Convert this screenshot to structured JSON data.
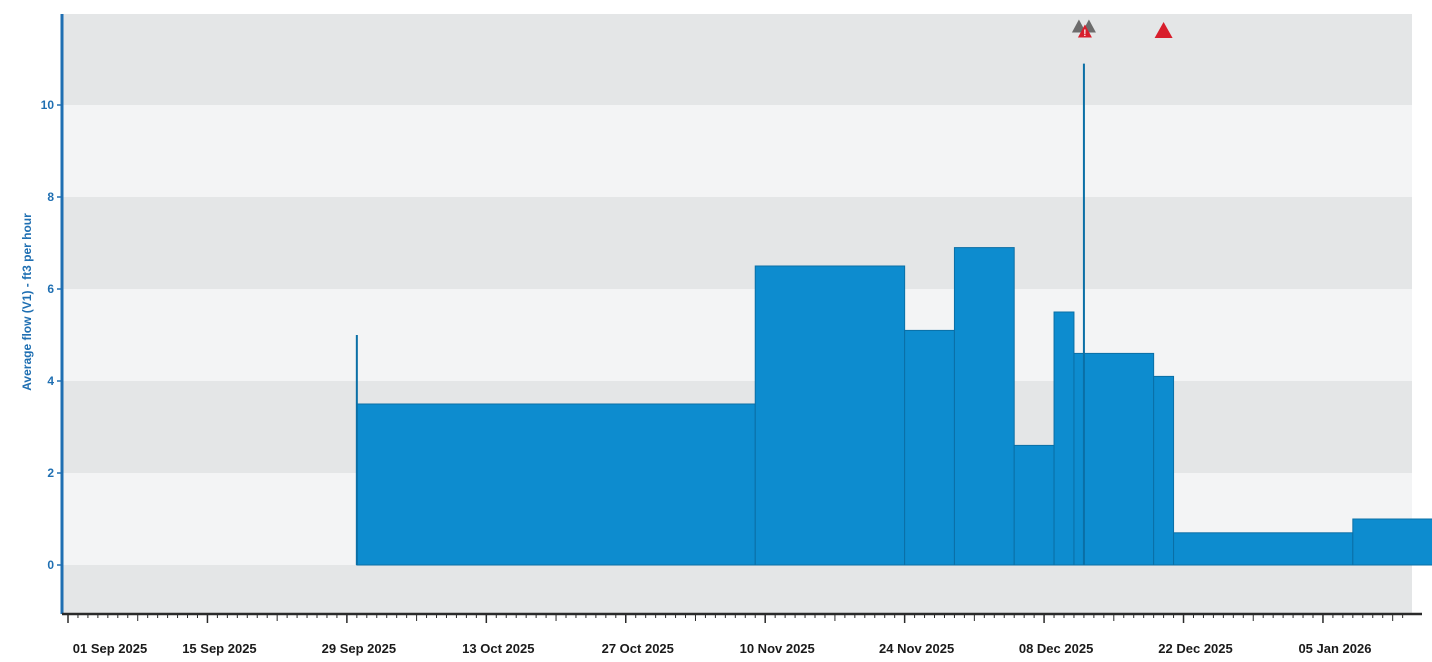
{
  "chart_data": {
    "type": "area",
    "title": "",
    "xlabel": "",
    "ylabel": "Average flow (V1) - ft3 per hour",
    "x_ticks": [
      "01 Sep 2025",
      "15 Sep 2025",
      "29 Sep 2025",
      "13 Oct 2025",
      "27 Oct 2025",
      "10 Nov 2025",
      "24 Nov 2025",
      "08 Dec 2025",
      "22 Dec 2025",
      "05 Jan 2026"
    ],
    "y_ticks": [
      0,
      2,
      4,
      6,
      8,
      10
    ],
    "ylim": [
      -1.2,
      12
    ],
    "xlim": [
      "2025-08-31",
      "2026-01-17"
    ],
    "grid": "horizontal alternating bands",
    "colors": {
      "fill": "#0d8ccf",
      "stroke": "#0a6fa6",
      "axis": "#1f6fb2",
      "band_dark": "#e4e6e7",
      "band_light": "#f3f4f5",
      "marker_red": "#d81e2c",
      "marker_gray": "#6c6c6c"
    },
    "series": [
      {
        "steps": [
          {
            "start": "2025-09-30",
            "end": "2025-11-09",
            "value": 3.5
          },
          {
            "start": "2025-11-09",
            "end": "2025-11-24",
            "value": 6.5
          },
          {
            "start": "2025-11-24",
            "end": "2025-11-29",
            "value": 5.1
          },
          {
            "start": "2025-11-29",
            "end": "2025-12-05",
            "value": 6.9
          },
          {
            "start": "2025-12-05",
            "end": "2025-12-09",
            "value": 2.6
          },
          {
            "start": "2025-12-09",
            "end": "2025-12-11",
            "value": 5.5
          },
          {
            "start": "2025-12-11",
            "end": "2025-12-19",
            "value": 4.6
          },
          {
            "start": "2025-12-19",
            "end": "2025-12-21",
            "value": 4.1
          },
          {
            "start": "2025-12-21",
            "end": "2026-01-08",
            "value": 0.7
          },
          {
            "start": "2026-01-08",
            "end": "2026-01-17",
            "value": 1.0
          }
        ],
        "spikes": [
          {
            "date": "2025-09-30",
            "value": 5.0
          },
          {
            "date": "2025-12-12",
            "value": 10.9
          }
        ]
      }
    ],
    "markers": [
      {
        "date": "2025-12-12",
        "icon": "double-warning-triangle-icon",
        "color": "gray-red"
      },
      {
        "date": "2025-12-20",
        "icon": "warning-triangle-icon",
        "color": "red"
      }
    ]
  }
}
